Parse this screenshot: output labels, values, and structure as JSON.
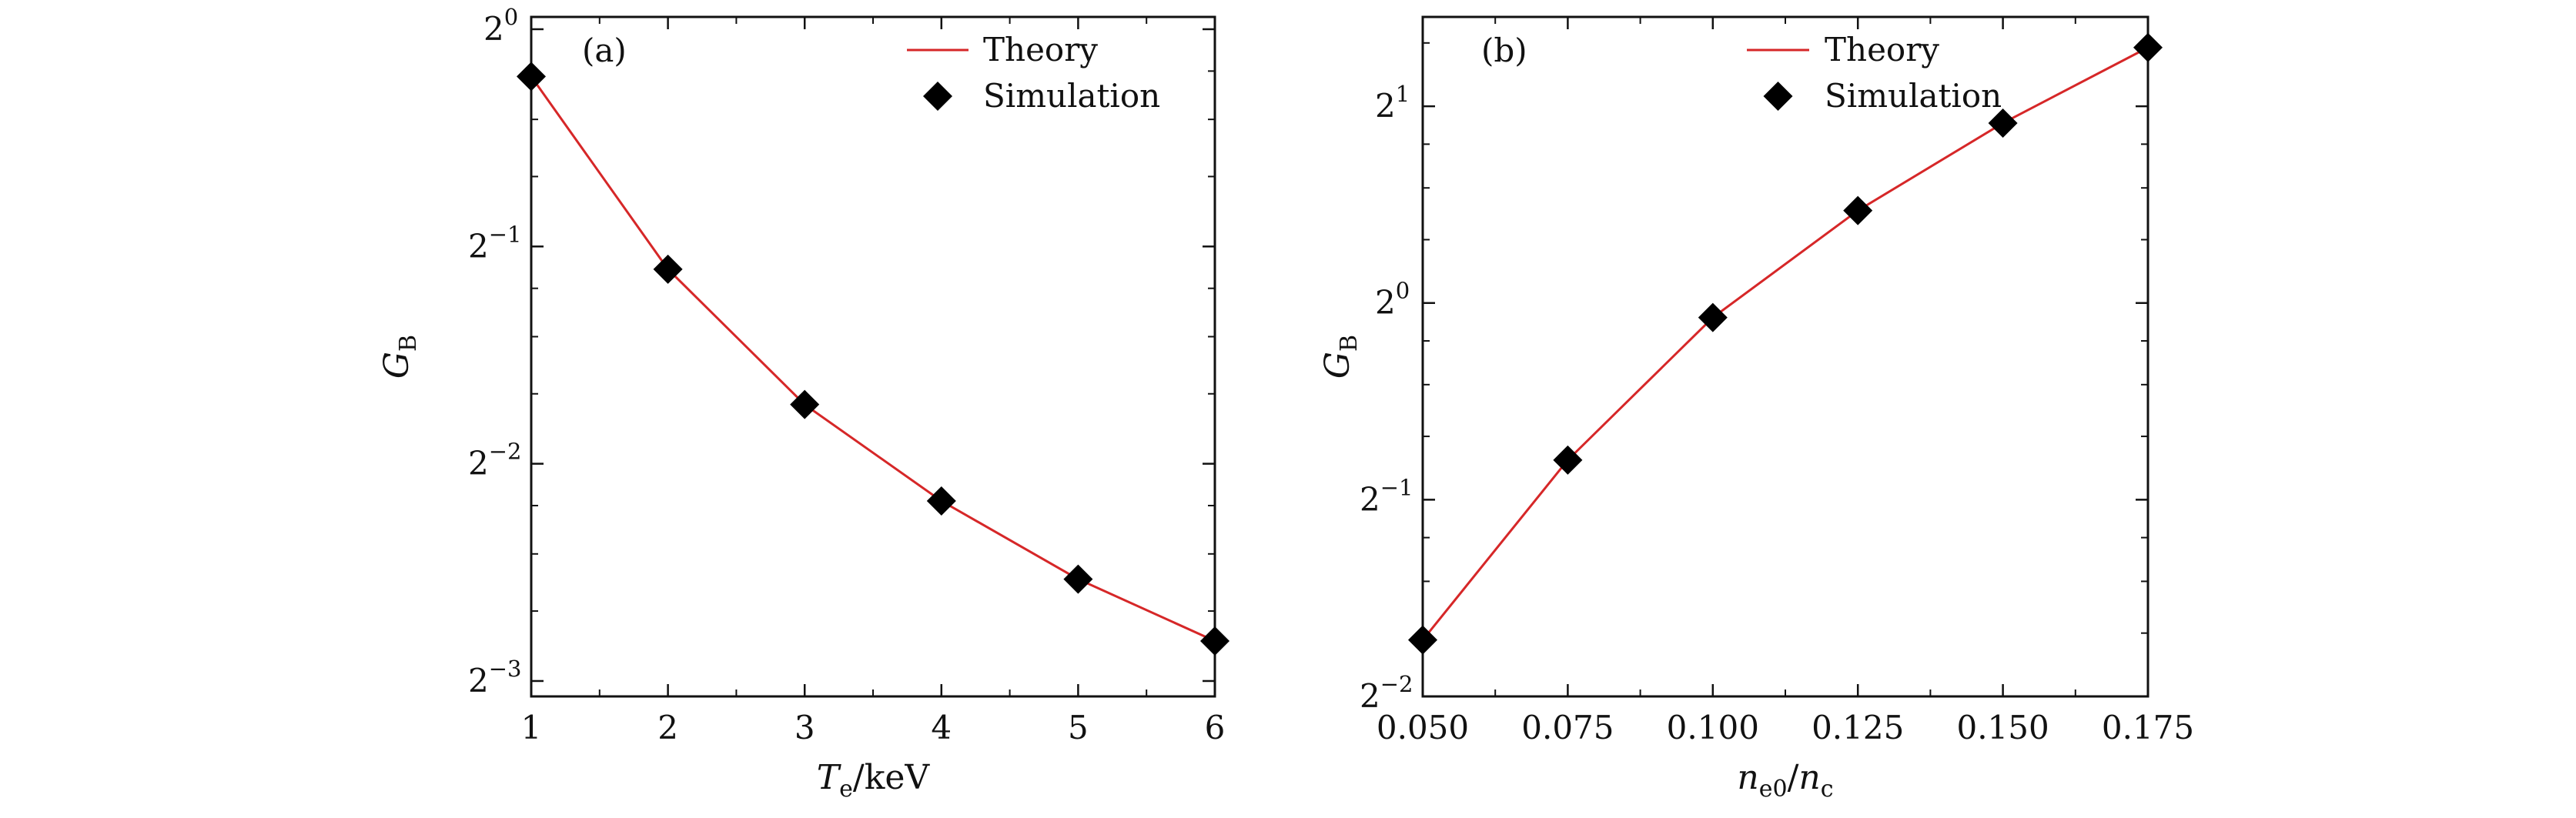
{
  "chart_data": [
    {
      "type": "line",
      "panel_label": "(a)",
      "xlabel": {
        "symbol": "T",
        "sub": "e",
        "unit": "/keV"
      },
      "ylabel": {
        "symbol": "G",
        "sub": "B"
      },
      "x_ticks": [
        "1",
        "2",
        "3",
        "4",
        "5",
        "6"
      ],
      "xlim": [
        1,
        6
      ],
      "y_scale": "log2",
      "y_ticks": [
        {
          "base": "2",
          "exp": "0"
        },
        {
          "base": "2",
          "exp": "−1"
        },
        {
          "base": "2",
          "exp": "−2"
        },
        {
          "base": "2",
          "exp": "−3"
        }
      ],
      "ylim": [
        0.119,
        1.04
      ],
      "legend": {
        "placement": "top-right",
        "items": [
          "Theory",
          "Simulation"
        ]
      },
      "series": [
        {
          "name": "Theory",
          "style": "line",
          "color": "#d62728",
          "x": [
            1,
            2,
            3,
            4,
            5,
            6
          ],
          "y": [
            0.86,
            0.465,
            0.302,
            0.222,
            0.173,
            0.142
          ]
        },
        {
          "name": "Simulation",
          "style": "diamond",
          "color": "#000000",
          "x": [
            1,
            2,
            3,
            4,
            5,
            6
          ],
          "y": [
            0.86,
            0.465,
            0.302,
            0.222,
            0.173,
            0.142
          ]
        }
      ]
    },
    {
      "type": "line",
      "panel_label": "(b)",
      "xlabel": {
        "symbol": "n",
        "sub": "e0",
        "mid": "/",
        "symbol2": "n",
        "sub2": "c"
      },
      "ylabel": {
        "symbol": "G",
        "sub": "B"
      },
      "x_ticks": [
        "0.050",
        "0.075",
        "0.100",
        "0.125",
        "0.150",
        "0.175"
      ],
      "xlim": [
        0.05,
        0.175
      ],
      "y_scale": "log2",
      "y_ticks": [
        {
          "base": "2",
          "exp": "1"
        },
        {
          "base": "2",
          "exp": "0"
        },
        {
          "base": "2",
          "exp": "−1"
        },
        {
          "base": "2",
          "exp": "−2"
        }
      ],
      "ylim": [
        0.25,
        2.74
      ],
      "legend": {
        "placement": "top-center",
        "items": [
          "Theory",
          "Simulation"
        ]
      },
      "series": [
        {
          "name": "Theory",
          "style": "line",
          "color": "#d62728",
          "x": [
            0.05,
            0.075,
            0.1,
            0.125,
            0.15,
            0.175
          ],
          "y": [
            0.305,
            0.575,
            0.95,
            1.385,
            1.885,
            2.46
          ]
        },
        {
          "name": "Simulation",
          "style": "diamond",
          "color": "#000000",
          "x": [
            0.05,
            0.075,
            0.1,
            0.125,
            0.15,
            0.175
          ],
          "y": [
            0.305,
            0.575,
            0.95,
            1.385,
            1.885,
            2.46
          ]
        }
      ]
    }
  ]
}
